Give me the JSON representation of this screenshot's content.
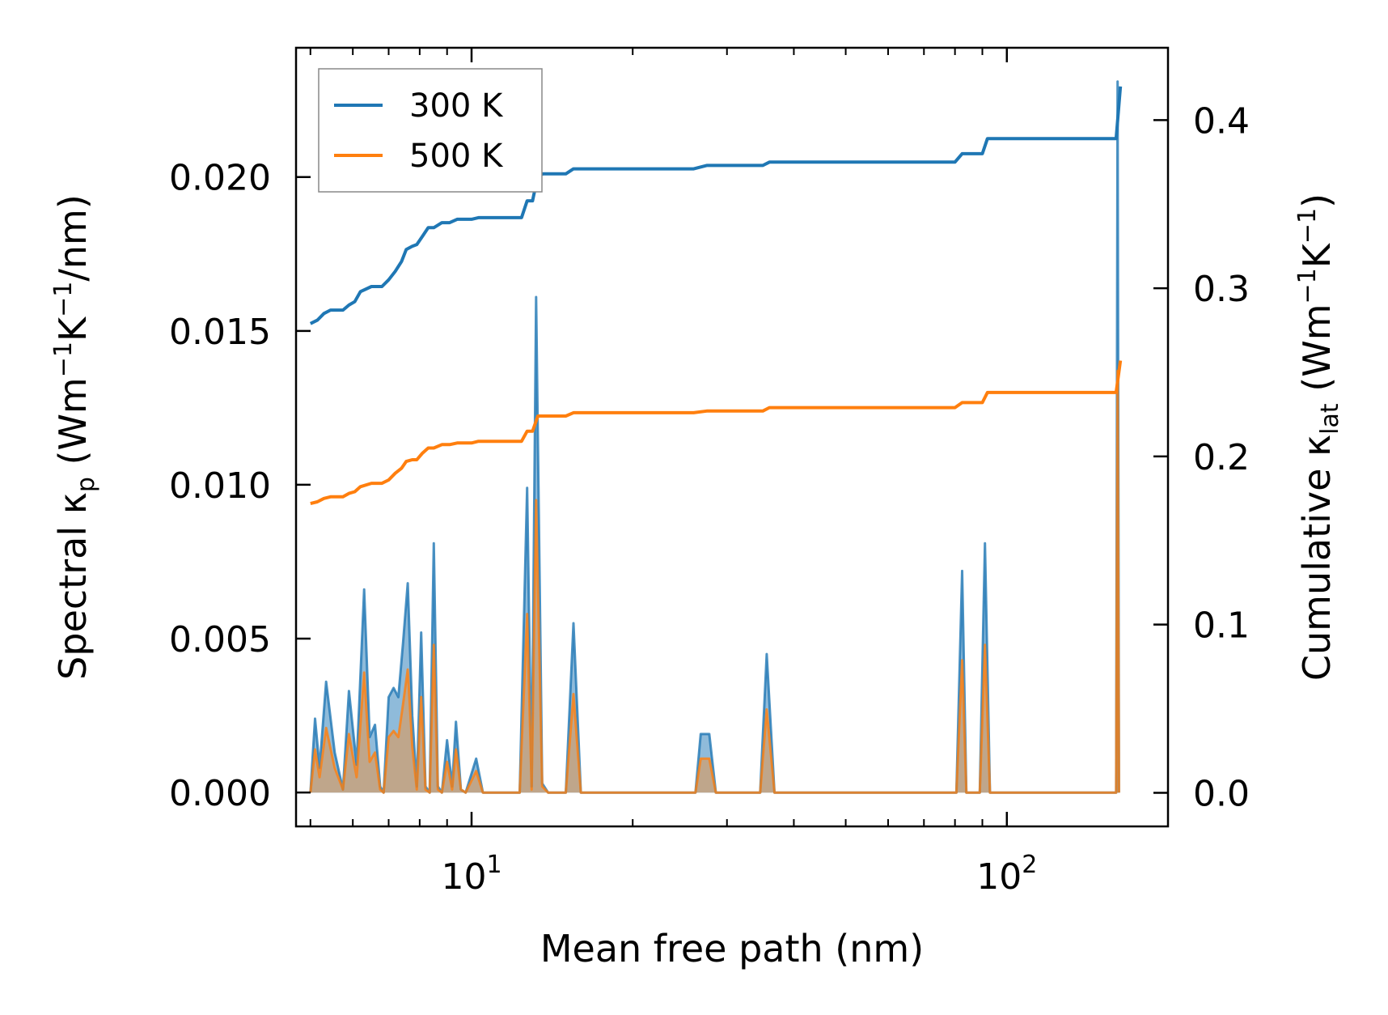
{
  "chart_data": {
    "type": "line",
    "x_scale": "log",
    "xlabel": "Mean free path (nm)",
    "ylabel_left": {
      "base": "Spectral κ",
      "sub": "p",
      "unit_open": " (Wm",
      "exp1": "−1",
      "mid": "K",
      "exp2": "−1",
      "tail": "/nm)"
    },
    "ylabel_right": {
      "base": "Cumulative κ",
      "sub": "lat",
      "unit_open": " (Wm",
      "exp1": "−1",
      "mid": "K",
      "exp2": "−1",
      "tail": ")"
    },
    "xlim": [
      4.7,
      200
    ],
    "ylim_left": [
      -0.0011,
      0.0242
    ],
    "ylim_right": [
      -0.02,
      0.443
    ],
    "x_ticks": [
      {
        "value": 10,
        "base": "10",
        "exp": "1"
      },
      {
        "value": 100,
        "base": "10",
        "exp": "2"
      }
    ],
    "y_ticks_left": [
      {
        "value": 0.0,
        "label": "0.000"
      },
      {
        "value": 0.005,
        "label": "0.005"
      },
      {
        "value": 0.01,
        "label": "0.010"
      },
      {
        "value": 0.015,
        "label": "0.015"
      },
      {
        "value": 0.02,
        "label": "0.020"
      }
    ],
    "y_ticks_right": [
      {
        "value": 0.0,
        "label": "0.0"
      },
      {
        "value": 0.1,
        "label": "0.1"
      },
      {
        "value": 0.2,
        "label": "0.2"
      },
      {
        "value": 0.3,
        "label": "0.3"
      },
      {
        "value": 0.4,
        "label": "0.4"
      }
    ],
    "legend": {
      "position": "top-left",
      "entries": [
        "300 K",
        "500 K"
      ]
    },
    "colors": {
      "300 K": "#1f77b4",
      "500 K": "#ff7f0e",
      "300 K fill": "#7bafd4",
      "500 K fill": "#c8a27c"
    },
    "series": [
      {
        "name": "300 K",
        "kind": "cumulative",
        "axis": "right",
        "x": [
          5.0,
          5.15,
          5.3,
          5.45,
          5.6,
          5.75,
          5.9,
          6.05,
          6.2,
          6.5,
          6.8,
          7.0,
          7.2,
          7.4,
          7.55,
          7.75,
          7.9,
          8.1,
          8.3,
          8.5,
          8.8,
          9.1,
          9.4,
          9.7,
          10.0,
          10.3,
          10.6,
          11.0,
          12.4,
          12.7,
          13.0,
          13.3,
          13.6,
          14.0,
          15.0,
          15.5,
          16.0,
          20.0,
          26.0,
          27.5,
          28.5,
          35.0,
          36.0,
          50.0,
          80.0,
          82.5,
          90.0,
          92.0,
          100.0,
          150.0,
          160.0,
          163.0
        ],
        "values": [
          0.279,
          0.281,
          0.285,
          0.287,
          0.287,
          0.287,
          0.29,
          0.292,
          0.298,
          0.301,
          0.301,
          0.305,
          0.31,
          0.316,
          0.323,
          0.325,
          0.326,
          0.331,
          0.336,
          0.336,
          0.339,
          0.339,
          0.341,
          0.341,
          0.341,
          0.342,
          0.342,
          0.342,
          0.342,
          0.352,
          0.352,
          0.367,
          0.368,
          0.368,
          0.368,
          0.371,
          0.371,
          0.371,
          0.371,
          0.373,
          0.373,
          0.373,
          0.375,
          0.375,
          0.375,
          0.38,
          0.38,
          0.389,
          0.389,
          0.389,
          0.389,
          0.42
        ]
      },
      {
        "name": "500 K",
        "kind": "cumulative",
        "axis": "right",
        "x": [
          5.0,
          5.15,
          5.3,
          5.45,
          5.6,
          5.75,
          5.9,
          6.05,
          6.2,
          6.5,
          6.8,
          7.0,
          7.2,
          7.4,
          7.55,
          7.75,
          7.9,
          8.1,
          8.3,
          8.5,
          8.8,
          9.1,
          9.4,
          9.7,
          10.0,
          10.3,
          10.6,
          11.0,
          12.4,
          12.7,
          13.0,
          13.3,
          13.6,
          14.0,
          15.0,
          15.5,
          16.0,
          20.0,
          26.0,
          27.5,
          28.5,
          35.0,
          36.0,
          50.0,
          80.0,
          82.5,
          90.0,
          92.0,
          100.0,
          150.0,
          160.0,
          163.0
        ],
        "values": [
          0.172,
          0.173,
          0.175,
          0.176,
          0.176,
          0.176,
          0.178,
          0.179,
          0.182,
          0.184,
          0.184,
          0.186,
          0.19,
          0.193,
          0.197,
          0.198,
          0.198,
          0.202,
          0.205,
          0.205,
          0.207,
          0.207,
          0.208,
          0.208,
          0.208,
          0.209,
          0.209,
          0.209,
          0.209,
          0.215,
          0.215,
          0.224,
          0.224,
          0.224,
          0.224,
          0.226,
          0.226,
          0.226,
          0.226,
          0.227,
          0.227,
          0.227,
          0.229,
          0.229,
          0.229,
          0.232,
          0.232,
          0.238,
          0.238,
          0.238,
          0.238,
          0.257
        ]
      },
      {
        "name": "300 K",
        "kind": "spectral",
        "axis": "left",
        "filled": true,
        "x": [
          5.0,
          5.1,
          5.2,
          5.35,
          5.55,
          5.75,
          5.9,
          6.1,
          6.3,
          6.45,
          6.6,
          6.75,
          6.85,
          7.0,
          7.15,
          7.3,
          7.45,
          7.6,
          7.75,
          7.9,
          8.05,
          8.2,
          8.35,
          8.5,
          8.65,
          8.8,
          9.0,
          9.2,
          9.35,
          9.55,
          9.75,
          10.2,
          10.5,
          10.8,
          12.3,
          12.7,
          12.95,
          13.2,
          13.55,
          13.9,
          14.2,
          15.0,
          15.5,
          16.0,
          26.2,
          26.8,
          27.8,
          28.6,
          34.6,
          35.6,
          36.8,
          80.5,
          82.5,
          84.0,
          89.0,
          91.0,
          93.0,
          157.0,
          160.0,
          161.0,
          162.0
        ],
        "values": [
          0.0,
          0.0024,
          0.0008,
          0.0036,
          0.0013,
          0.0001,
          0.0033,
          0.0009,
          0.0066,
          0.0018,
          0.0022,
          0.0002,
          0.0,
          0.0031,
          0.0034,
          0.0031,
          0.0049,
          0.0068,
          0.0025,
          0.0002,
          0.0052,
          0.0002,
          0.0,
          0.0081,
          0.0002,
          0.0,
          0.0017,
          0.0002,
          0.0023,
          0.0001,
          0.0,
          0.0011,
          0.0,
          0.0,
          0.0,
          0.0099,
          0.0002,
          0.0161,
          0.0003,
          0.0,
          0.0,
          0.0,
          0.0055,
          0.0,
          0.0,
          0.0019,
          0.0019,
          0.0,
          0.0,
          0.0045,
          0.0,
          0.0,
          0.0072,
          0.0,
          0.0,
          0.0081,
          0.0,
          0.0,
          0.0,
          0.0231,
          0.0
        ]
      },
      {
        "name": "500 K",
        "kind": "spectral",
        "axis": "left",
        "filled": true,
        "x": [
          5.0,
          5.1,
          5.2,
          5.35,
          5.55,
          5.75,
          5.9,
          6.1,
          6.3,
          6.45,
          6.6,
          6.75,
          6.85,
          7.0,
          7.15,
          7.3,
          7.45,
          7.6,
          7.75,
          7.9,
          8.05,
          8.2,
          8.35,
          8.5,
          8.65,
          8.8,
          9.0,
          9.2,
          9.35,
          9.55,
          9.75,
          10.2,
          10.5,
          10.8,
          12.3,
          12.7,
          12.95,
          13.2,
          13.55,
          13.9,
          14.2,
          15.0,
          15.5,
          16.0,
          26.2,
          26.8,
          27.8,
          28.6,
          34.6,
          35.6,
          36.8,
          80.5,
          82.5,
          84.0,
          89.0,
          91.0,
          93.0,
          157.0,
          160.0,
          161.0,
          162.0
        ],
        "values": [
          0.0,
          0.0014,
          0.0005,
          0.0021,
          0.0008,
          0.0001,
          0.0019,
          0.0005,
          0.0039,
          0.001,
          0.0013,
          0.0001,
          0.0,
          0.0018,
          0.002,
          0.0018,
          0.0029,
          0.004,
          0.0015,
          0.0001,
          0.0031,
          0.0001,
          0.0,
          0.0048,
          0.0001,
          0.0,
          0.001,
          0.0001,
          0.0014,
          0.0001,
          0.0,
          0.0007,
          0.0,
          0.0,
          0.0,
          0.0058,
          0.0001,
          0.0095,
          0.0002,
          0.0,
          0.0,
          0.0,
          0.0032,
          0.0,
          0.0,
          0.0011,
          0.0011,
          0.0,
          0.0,
          0.0027,
          0.0,
          0.0,
          0.0043,
          0.0,
          0.0,
          0.0048,
          0.0,
          0.0,
          0.0,
          0.0137,
          0.0
        ]
      }
    ]
  }
}
